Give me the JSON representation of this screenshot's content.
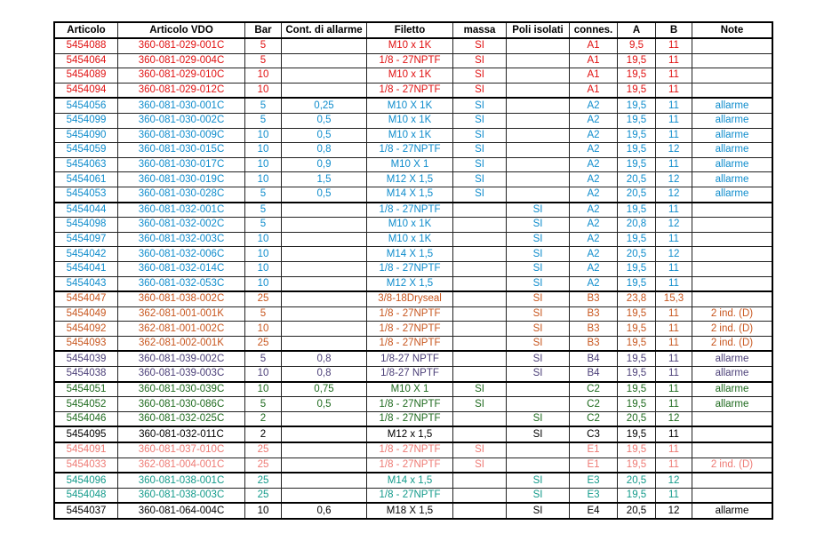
{
  "headers": [
    "Articolo",
    "Articolo VDO",
    "Bar",
    "Cont. di allarme",
    "Filetto",
    "massa",
    "Poli isolati",
    "connes.",
    "A",
    "B",
    "Note"
  ],
  "group_colors": {
    "red": "#e01010",
    "blue": "#0e8ccc",
    "orange": "#c8561e",
    "purple": "#4b3f78",
    "green": "#1e6a1e",
    "black": "#000000",
    "pink": "#ee7a74",
    "teal": "#129a8a"
  },
  "rows": [
    {
      "group": "red",
      "cells": [
        "5454088",
        "360-081-029-001C",
        "5",
        "",
        "M10 x 1K",
        "SI",
        "",
        "A1",
        "9,5",
        "11",
        ""
      ]
    },
    {
      "group": "red",
      "cells": [
        "5454064",
        "360-081-029-004C",
        "5",
        "",
        "1/8 - 27NPTF",
        "SI",
        "",
        "A1",
        "19,5",
        "11",
        ""
      ]
    },
    {
      "group": "red",
      "cells": [
        "5454089",
        "360-081-029-010C",
        "10",
        "",
        "M10 x 1K",
        "SI",
        "",
        "A1",
        "19,5",
        "11",
        ""
      ]
    },
    {
      "group": "red",
      "cells": [
        "5454094",
        "360-081-029-012C",
        "10",
        "",
        "1/8 - 27NPTF",
        "SI",
        "",
        "A1",
        "19,5",
        "11",
        ""
      ]
    },
    {
      "group": "blue",
      "cells": [
        "5454056",
        "360-081-030-001C",
        "5",
        "0,25",
        "M10 X 1K",
        "SI",
        "",
        "A2",
        "19,5",
        "11",
        "allarme"
      ]
    },
    {
      "group": "blue",
      "cells": [
        "5454099",
        "360-081-030-002C",
        "5",
        "0,5",
        "M10 x 1K",
        "SI",
        "",
        "A2",
        "19,5",
        "11",
        "allarme"
      ]
    },
    {
      "group": "blue",
      "cells": [
        "5454090",
        "360-081-030-009C",
        "10",
        "0,5",
        "M10 x 1K",
        "SI",
        "",
        "A2",
        "19,5",
        "11",
        "allarme"
      ]
    },
    {
      "group": "blue",
      "cells": [
        "5454059",
        "360-081-030-015C",
        "10",
        "0,8",
        "1/8 - 27NPTF",
        "SI",
        "",
        "A2",
        "19,5",
        "12",
        "allarme"
      ]
    },
    {
      "group": "blue",
      "cells": [
        "5454063",
        "360-081-030-017C",
        "10",
        "0,9",
        "M10 X 1",
        "SI",
        "",
        "A2",
        "19,5",
        "11",
        "allarme"
      ]
    },
    {
      "group": "blue",
      "cells": [
        "5454061",
        "360-081-030-019C",
        "10",
        "1,5",
        "M12 X 1,5",
        "SI",
        "",
        "A2",
        "20,5",
        "12",
        "allarme"
      ]
    },
    {
      "group": "blue",
      "cells": [
        "5454053",
        "360-081-030-028C",
        "5",
        "0,5",
        "M14 X 1,5",
        "SI",
        "",
        "A2",
        "20,5",
        "12",
        "allarme"
      ]
    },
    {
      "group": "blue",
      "start": true,
      "cells": [
        "5454044",
        "360-081-032-001C",
        "5",
        "",
        "1/8 - 27NPTF",
        "",
        "SI",
        "A2",
        "19,5",
        "11",
        ""
      ]
    },
    {
      "group": "blue",
      "cells": [
        "5454098",
        "360-081-032-002C",
        "5",
        "",
        "M10 x 1K",
        "",
        "SI",
        "A2",
        "20,8",
        "12",
        ""
      ]
    },
    {
      "group": "blue",
      "cells": [
        "5454097",
        "360-081-032-003C",
        "10",
        "",
        "M10 x 1K",
        "",
        "SI",
        "A2",
        "19,5",
        "11",
        ""
      ]
    },
    {
      "group": "blue",
      "cells": [
        "5454042",
        "360-081-032-006C",
        "10",
        "",
        "M14 X 1,5",
        "",
        "SI",
        "A2",
        "20,5",
        "12",
        ""
      ]
    },
    {
      "group": "blue",
      "cells": [
        "5454041",
        "360-081-032-014C",
        "10",
        "",
        "1/8 - 27NPTF",
        "",
        "SI",
        "A2",
        "19,5",
        "11",
        ""
      ]
    },
    {
      "group": "blue",
      "cells": [
        "5454043",
        "360-081-032-053C",
        "10",
        "",
        "M12 X 1,5",
        "",
        "SI",
        "A2",
        "19,5",
        "11",
        ""
      ]
    },
    {
      "group": "orange",
      "cells": [
        "5454047",
        "360-081-038-002C",
        "25",
        "",
        "3/8-18Dryseal",
        "",
        "SI",
        "B3",
        "23,8",
        "15,3",
        ""
      ]
    },
    {
      "group": "orange",
      "cells": [
        "5454049",
        "362-081-001-001K",
        "5",
        "",
        "1/8 - 27NPTF",
        "",
        "SI",
        "B3",
        "19,5",
        "11",
        "2 ind. (D)"
      ]
    },
    {
      "group": "orange",
      "cells": [
        "5454092",
        "362-081-001-002C",
        "10",
        "",
        "1/8 - 27NPTF",
        "",
        "SI",
        "B3",
        "19,5",
        "11",
        "2 ind. (D)"
      ]
    },
    {
      "group": "orange",
      "cells": [
        "5454093",
        "362-081-002-001K",
        "25",
        "",
        "1/8 - 27NPTF",
        "",
        "SI",
        "B3",
        "19,5",
        "11",
        "2 ind. (D)"
      ]
    },
    {
      "group": "purple",
      "cells": [
        "5454039",
        "360-081-039-002C",
        "5",
        "0,8",
        "1/8-27 NPTF",
        "",
        "SI",
        "B4",
        "19,5",
        "11",
        "allarme"
      ]
    },
    {
      "group": "purple",
      "cells": [
        "5454038",
        "360-081-039-003C",
        "10",
        "0,8",
        "1/8-27 NPTF",
        "",
        "SI",
        "B4",
        "19,5",
        "11",
        "allarme"
      ]
    },
    {
      "group": "green",
      "cells": [
        "5454051",
        "360-081-030-039C",
        "10",
        "0,75",
        "M10 X 1",
        "SI",
        "",
        "C2",
        "19,5",
        "11",
        "allarme"
      ]
    },
    {
      "group": "green",
      "cells": [
        "5454052",
        "360-081-030-086C",
        "5",
        "0,5",
        "1/8 - 27NPTF",
        "SI",
        "",
        "C2",
        "19,5",
        "11",
        "allarme"
      ]
    },
    {
      "group": "green",
      "cells": [
        "5454046",
        "360-081-032-025C",
        "2",
        "",
        "1/8 - 27NPTF",
        "",
        "SI",
        "C2",
        "20,5",
        "12",
        ""
      ]
    },
    {
      "group": "black",
      "cells": [
        "5454095",
        "360-081-032-011C",
        "2",
        "",
        "M12 x 1,5",
        "",
        "SI",
        "C3",
        "19,5",
        "11",
        ""
      ]
    },
    {
      "group": "pink",
      "cells": [
        "5454091",
        "360-081-037-010C",
        "25",
        "",
        "1/8 - 27NPTF",
        "SI",
        "",
        "E1",
        "19,5",
        "11",
        ""
      ]
    },
    {
      "group": "pink",
      "cells": [
        "5454033",
        "362-081-004-001C",
        "25",
        "",
        "1/8 - 27NPTF",
        "SI",
        "",
        "E1",
        "19,5",
        "11",
        "2 ind. (D)"
      ]
    },
    {
      "group": "teal",
      "cells": [
        "5454096",
        "360-081-038-001C",
        "25",
        "",
        "M14 x 1,5",
        "",
        "SI",
        "E3",
        "20,5",
        "12",
        ""
      ]
    },
    {
      "group": "teal",
      "cells": [
        "5454048",
        "360-081-038-003C",
        "25",
        "",
        "1/8 - 27NPTF",
        "",
        "SI",
        "E3",
        "19,5",
        "11",
        ""
      ]
    },
    {
      "group": "black",
      "start": true,
      "cells": [
        "5454037",
        "360-081-064-004C",
        "10",
        "0,6",
        "M18 X 1,5",
        "",
        "SI",
        "E4",
        "20,5",
        "12",
        "allarme"
      ]
    }
  ]
}
